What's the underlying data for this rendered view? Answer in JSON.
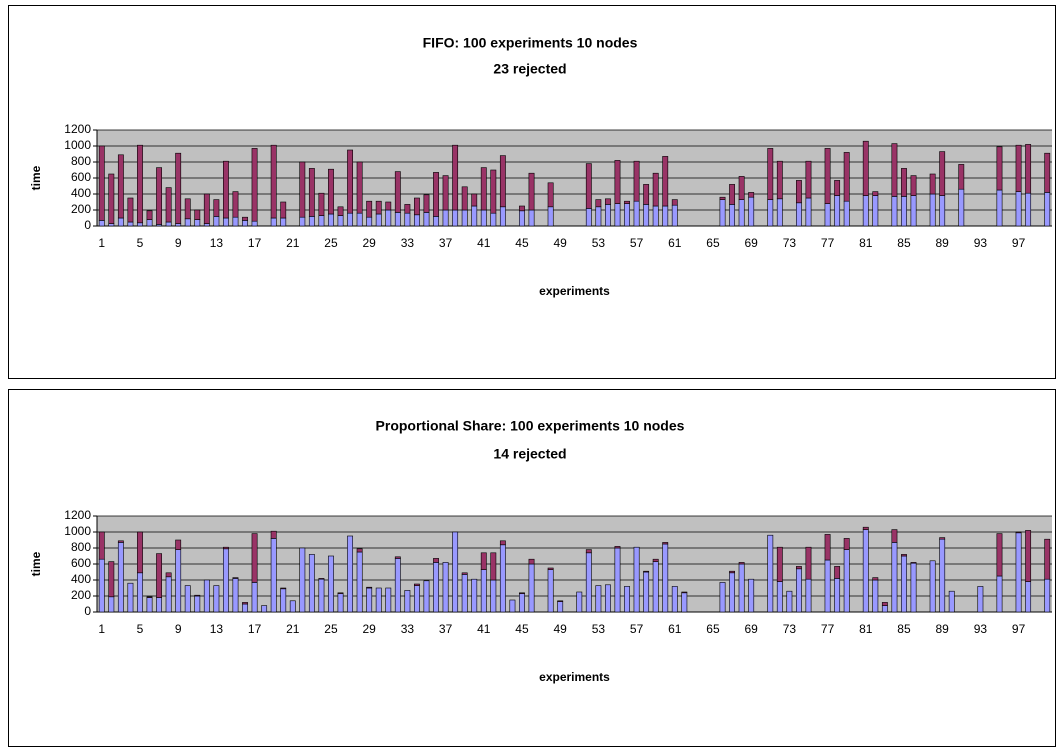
{
  "chart_data": [
    {
      "type": "bar",
      "title": "FIFO: 100 experiments 10 nodes",
      "subtitle": "23 rejected",
      "xlabel": "experiments",
      "ylabel": "time",
      "stacked": true,
      "grid": true,
      "ylim": [
        0,
        1200
      ],
      "yticks": [
        0,
        200,
        400,
        600,
        800,
        1000,
        1200
      ],
      "categories": [
        1,
        null,
        null,
        null,
        5,
        null,
        null,
        null,
        9,
        null,
        null,
        null,
        13,
        null,
        null,
        null,
        17,
        null,
        null,
        null,
        21,
        null,
        null,
        null,
        25,
        null,
        null,
        null,
        29,
        null,
        null,
        null,
        33,
        null,
        null,
        null,
        37,
        null,
        null,
        null,
        41,
        null,
        null,
        null,
        45,
        null,
        null,
        null,
        49,
        null,
        null,
        null,
        53,
        null,
        null,
        null,
        57,
        null,
        null,
        null,
        61,
        null,
        null,
        null,
        65,
        null,
        null,
        null,
        69,
        null,
        null,
        null,
        73,
        null,
        null,
        null,
        77,
        null,
        null,
        null,
        81,
        null,
        null,
        null,
        85,
        null,
        null,
        null,
        89,
        null,
        null,
        null,
        93,
        null,
        null,
        null,
        97,
        null,
        null,
        null
      ],
      "series": [
        {
          "color": "#9999ff",
          "values": [
            70,
            30,
            100,
            50,
            40,
            80,
            20,
            50,
            30,
            90,
            80,
            30,
            120,
            100,
            110,
            70,
            60,
            null,
            100,
            100,
            null,
            110,
            120,
            130,
            150,
            130,
            160,
            160,
            110,
            150,
            200,
            170,
            160,
            140,
            170,
            120,
            200,
            200,
            200,
            250,
            200,
            160,
            240,
            null,
            190,
            200,
            null,
            240,
            null,
            null,
            null,
            220,
            240,
            270,
            280,
            280,
            310,
            270,
            250,
            250,
            260,
            null,
            null,
            null,
            null,
            330,
            270,
            330,
            360,
            null,
            330,
            340,
            null,
            290,
            350,
            null,
            280,
            380,
            310,
            null,
            380,
            380,
            null,
            370,
            370,
            380,
            null,
            400,
            380,
            null,
            460,
            null,
            null,
            null,
            450,
            null,
            430,
            410,
            null,
            420
          ]
        },
        {
          "color": "#993366",
          "values": [
            930,
            620,
            790,
            300,
            970,
            110,
            710,
            430,
            880,
            250,
            120,
            370,
            210,
            710,
            320,
            40,
            910,
            null,
            910,
            200,
            null,
            690,
            600,
            280,
            560,
            110,
            790,
            640,
            200,
            160,
            100,
            510,
            110,
            210,
            220,
            550,
            430,
            810,
            290,
            150,
            530,
            540,
            640,
            null,
            60,
            460,
            null,
            300,
            null,
            null,
            null,
            560,
            90,
            70,
            540,
            30,
            500,
            250,
            410,
            620,
            70,
            null,
            null,
            null,
            null,
            30,
            250,
            290,
            60,
            null,
            640,
            470,
            null,
            280,
            460,
            null,
            690,
            190,
            610,
            null,
            680,
            50,
            null,
            660,
            350,
            250,
            null,
            250,
            550,
            null,
            310,
            null,
            null,
            null,
            540,
            null,
            580,
            610,
            null,
            490
          ]
        }
      ]
    },
    {
      "type": "bar",
      "title": "Proportional Share: 100 experiments 10 nodes",
      "subtitle": "14 rejected",
      "xlabel": "experiments",
      "ylabel": "time",
      "stacked": true,
      "grid": true,
      "ylim": [
        0,
        1200
      ],
      "yticks": [
        0,
        200,
        400,
        600,
        800,
        1000,
        1200
      ],
      "categories": [
        1,
        null,
        null,
        null,
        5,
        null,
        null,
        null,
        9,
        null,
        null,
        null,
        13,
        null,
        null,
        null,
        17,
        null,
        null,
        null,
        21,
        null,
        null,
        null,
        25,
        null,
        null,
        null,
        29,
        null,
        null,
        null,
        33,
        null,
        null,
        null,
        37,
        null,
        null,
        null,
        41,
        null,
        null,
        null,
        45,
        null,
        null,
        null,
        49,
        null,
        null,
        null,
        53,
        null,
        null,
        null,
        57,
        null,
        null,
        null,
        61,
        null,
        null,
        null,
        65,
        null,
        null,
        null,
        69,
        null,
        null,
        null,
        73,
        null,
        null,
        null,
        77,
        null,
        null,
        null,
        81,
        null,
        null,
        null,
        85,
        null,
        null,
        null,
        89,
        null,
        null,
        null,
        93,
        null,
        null,
        null,
        97,
        null,
        null,
        null
      ],
      "series": [
        {
          "color": "#9999ff",
          "values": [
            660,
            190,
            870,
            360,
            490,
            180,
            180,
            440,
            780,
            330,
            200,
            400,
            330,
            790,
            420,
            100,
            370,
            80,
            920,
            290,
            140,
            800,
            720,
            410,
            700,
            230,
            950,
            750,
            300,
            300,
            300,
            670,
            270,
            330,
            390,
            620,
            620,
            1000,
            470,
            410,
            530,
            400,
            840,
            150,
            230,
            600,
            null,
            530,
            130,
            null,
            250,
            740,
            330,
            340,
            800,
            320,
            810,
            500,
            630,
            850,
            320,
            240,
            null,
            null,
            null,
            370,
            490,
            600,
            410,
            null,
            960,
            380,
            260,
            540,
            410,
            null,
            650,
            420,
            780,
            null,
            1030,
            400,
            80,
            870,
            700,
            610,
            null,
            640,
            910,
            260,
            null,
            null,
            320,
            null,
            450,
            null,
            990,
            380,
            null,
            410
          ]
        },
        {
          "color": "#993366",
          "values": [
            340,
            440,
            20,
            0,
            510,
            10,
            550,
            50,
            120,
            0,
            10,
            0,
            0,
            20,
            10,
            20,
            610,
            0,
            90,
            10,
            0,
            0,
            0,
            10,
            0,
            10,
            0,
            40,
            10,
            0,
            0,
            20,
            0,
            20,
            0,
            50,
            0,
            0,
            20,
            0,
            210,
            340,
            50,
            0,
            10,
            60,
            null,
            20,
            10,
            null,
            0,
            40,
            0,
            0,
            20,
            0,
            0,
            10,
            30,
            20,
            0,
            10,
            null,
            null,
            null,
            0,
            20,
            20,
            0,
            null,
            0,
            430,
            0,
            30,
            400,
            null,
            320,
            150,
            140,
            null,
            30,
            30,
            40,
            160,
            20,
            10,
            null,
            0,
            20,
            0,
            null,
            null,
            0,
            null,
            530,
            null,
            10,
            640,
            null,
            500
          ]
        }
      ]
    }
  ]
}
